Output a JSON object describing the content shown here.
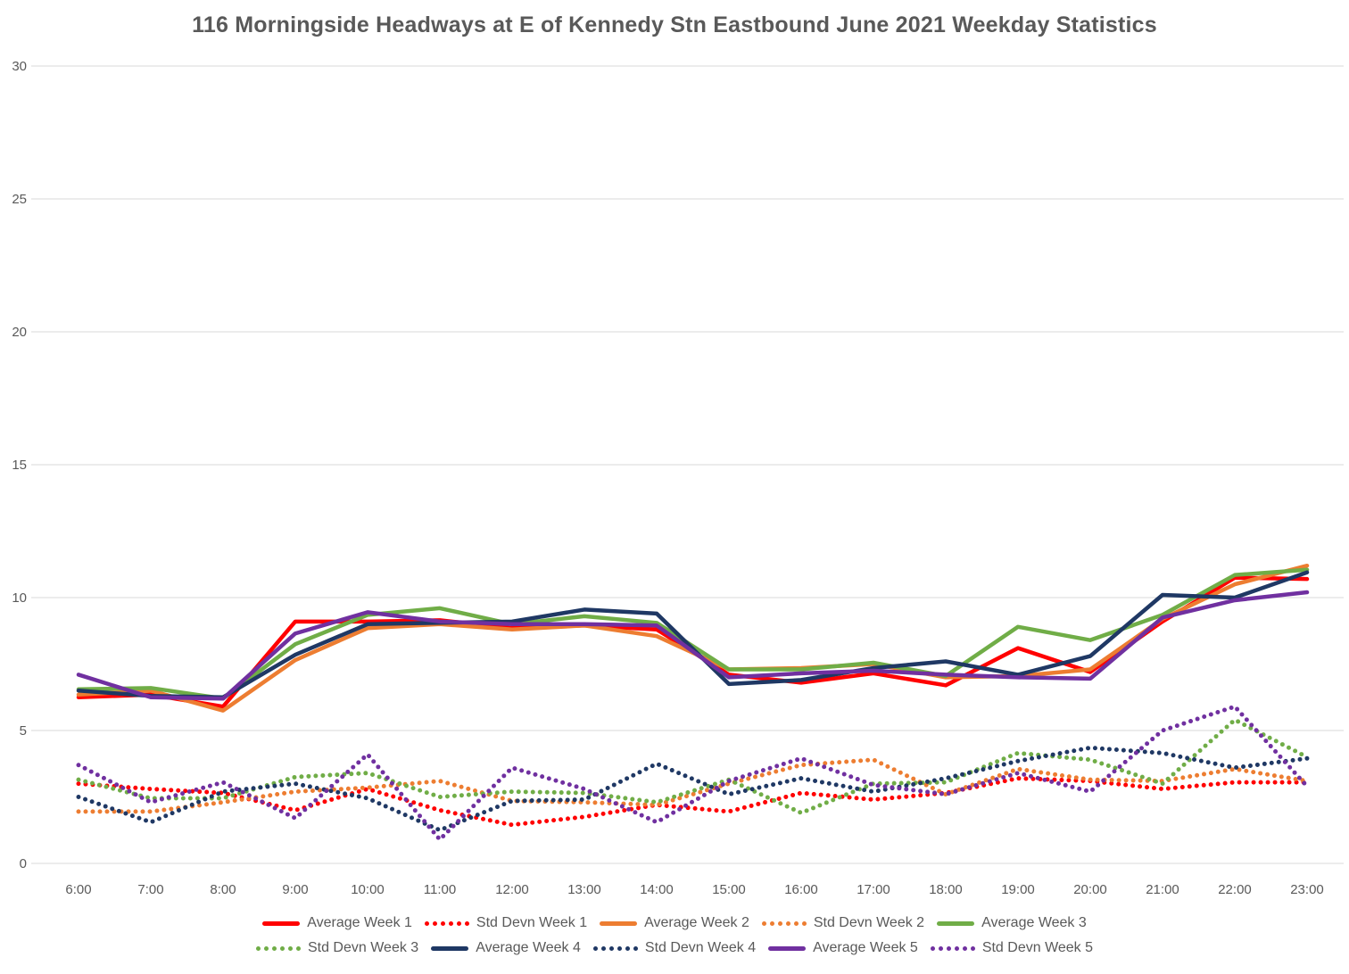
{
  "chart_data": {
    "type": "line",
    "title": "116 Morningside Headways at E of Kennedy Stn Eastbound June 2021 Weekday Statistics",
    "xlabel": "",
    "ylabel": "",
    "grid": "horizontal",
    "legend_position": "bottom",
    "text_color": "#595959",
    "gridline_color": "#d9d9d9",
    "y_axis": {
      "min": 0,
      "max": 30,
      "tick_interval": 5,
      "ticks": [
        0,
        5,
        10,
        15,
        20,
        25,
        30
      ]
    },
    "categories": [
      "6:00",
      "7:00",
      "8:00",
      "9:00",
      "10:00",
      "11:00",
      "12:00",
      "13:00",
      "14:00",
      "15:00",
      "16:00",
      "17:00",
      "18:00",
      "19:00",
      "20:00",
      "21:00",
      "22:00",
      "23:00"
    ],
    "series": [
      {
        "name": "Average Week 1",
        "slug": "average-week-1",
        "style": "solid",
        "color": "#ff0000",
        "values": [
          6.25,
          6.35,
          5.9,
          9.1,
          9.1,
          9.15,
          8.85,
          8.95,
          8.8,
          7.1,
          6.8,
          7.15,
          6.7,
          8.1,
          7.2,
          9.1,
          10.75,
          10.7
        ]
      },
      {
        "name": "Std Devn Week 1",
        "slug": "std-devn-week-1",
        "style": "dotted",
        "color": "#ff0000",
        "values": [
          3.0,
          2.8,
          2.65,
          2.0,
          2.8,
          2.0,
          1.45,
          1.75,
          2.2,
          1.95,
          2.65,
          2.4,
          2.65,
          3.2,
          3.1,
          2.8,
          3.05,
          3.05
        ]
      },
      {
        "name": "Average Week 2",
        "slug": "average-week-2",
        "style": "solid",
        "color": "#ed7d31",
        "values": [
          6.35,
          6.5,
          5.75,
          7.65,
          8.85,
          9.0,
          8.8,
          8.95,
          8.55,
          7.3,
          7.35,
          7.5,
          7.0,
          7.05,
          7.3,
          9.2,
          10.5,
          11.2
        ]
      },
      {
        "name": "Std Devn Week 2",
        "slug": "std-devn-week-2",
        "style": "dotted",
        "color": "#ed7d31",
        "values": [
          1.95,
          1.95,
          2.3,
          2.7,
          2.85,
          3.1,
          2.35,
          2.3,
          2.2,
          3.0,
          3.7,
          3.9,
          2.6,
          3.55,
          3.15,
          3.1,
          3.55,
          3.1
        ]
      },
      {
        "name": "Average Week 3",
        "slug": "average-week-3",
        "style": "solid",
        "color": "#70ad47",
        "values": [
          6.55,
          6.6,
          6.2,
          8.25,
          9.35,
          9.6,
          9.0,
          9.3,
          9.05,
          7.3,
          7.3,
          7.55,
          7.05,
          8.9,
          8.4,
          9.35,
          10.85,
          11.05
        ]
      },
      {
        "name": "Std Devn Week 3",
        "slug": "std-devn-week-3",
        "style": "dotted",
        "color": "#70ad47",
        "values": [
          3.15,
          2.45,
          2.45,
          3.25,
          3.4,
          2.5,
          2.7,
          2.65,
          2.3,
          3.15,
          1.9,
          3.0,
          3.05,
          4.15,
          3.9,
          3.0,
          5.4,
          4.0
        ]
      },
      {
        "name": "Average Week 4",
        "slug": "average-week-4",
        "style": "solid",
        "color": "#1f3864",
        "values": [
          6.5,
          6.3,
          6.25,
          7.85,
          9.0,
          9.05,
          9.1,
          9.55,
          9.4,
          6.75,
          6.9,
          7.35,
          7.6,
          7.1,
          7.8,
          10.1,
          10.0,
          10.95
        ]
      },
      {
        "name": "Std Devn Week 4",
        "slug": "std-devn-week-4",
        "style": "dotted",
        "color": "#1f3864",
        "values": [
          2.5,
          1.55,
          2.7,
          3.0,
          2.45,
          1.25,
          2.35,
          2.4,
          3.75,
          2.6,
          3.2,
          2.7,
          3.2,
          3.85,
          4.35,
          4.15,
          3.6,
          3.95
        ]
      },
      {
        "name": "Average Week 5",
        "slug": "average-week-5",
        "style": "solid",
        "color": "#7030a0",
        "values": [
          7.1,
          6.25,
          6.2,
          8.65,
          9.45,
          9.1,
          9.0,
          9.0,
          8.95,
          7.0,
          7.15,
          7.25,
          7.1,
          7.0,
          6.95,
          9.25,
          9.9,
          10.2
        ]
      },
      {
        "name": "Std Devn Week 5",
        "slug": "std-devn-week-5",
        "style": "dotted",
        "color": "#7030a0",
        "values": [
          3.7,
          2.3,
          3.05,
          1.7,
          4.1,
          0.9,
          3.6,
          2.8,
          1.55,
          3.1,
          3.95,
          2.95,
          2.6,
          3.4,
          2.7,
          5.0,
          5.9,
          2.9
        ]
      }
    ],
    "legend_rows": [
      [
        0,
        1,
        2,
        3,
        4
      ],
      [
        5,
        6,
        7,
        8,
        9
      ]
    ]
  }
}
